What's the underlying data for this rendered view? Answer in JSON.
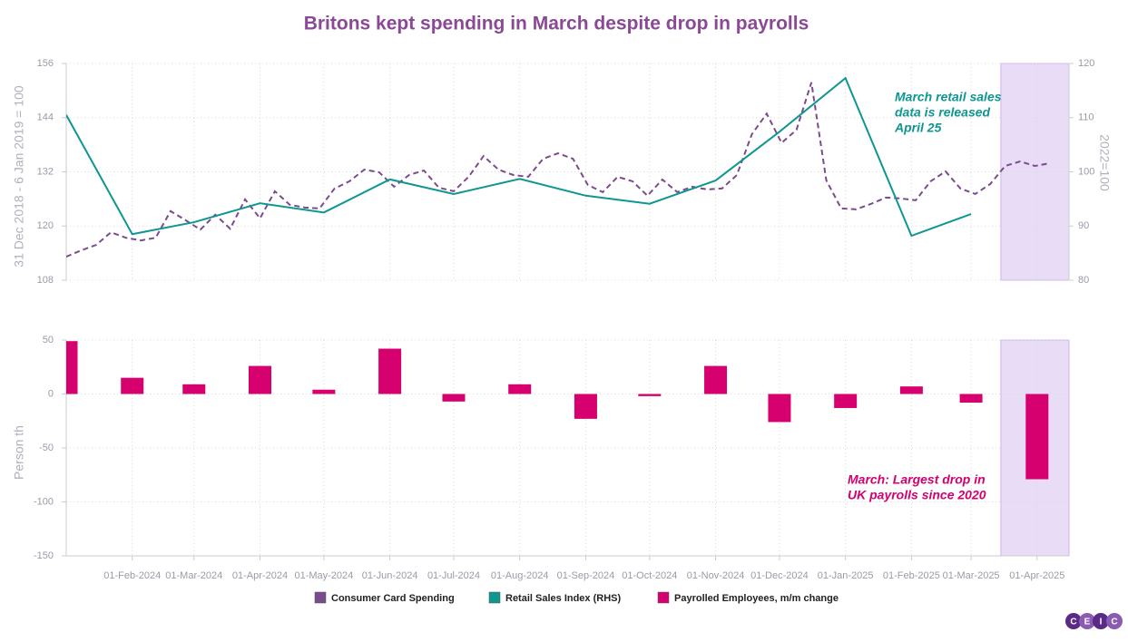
{
  "chart_data": [
    {
      "type": "line",
      "title": "Britons kept spending in March despite drop in payrolls",
      "xlim": [
        "2024-01-01",
        "2025-04-16"
      ],
      "ylim": [
        108,
        156
      ],
      "yticks": [
        108,
        120,
        132,
        144,
        156
      ],
      "y2lim": [
        80,
        120
      ],
      "y2ticks": [
        80,
        90,
        100,
        110,
        120
      ],
      "ylabel": "31 Dec 2018 - 6 Jan 2019 = 100",
      "y2label": "2022=100",
      "grid": true,
      "highlight": [
        "2025-03-15",
        "2025-04-16"
      ],
      "annotation": {
        "lines": [
          "March retail sales",
          "data is released",
          "April 25"
        ],
        "color": "#0e9690"
      },
      "series": [
        {
          "name": "Consumer Card Spending",
          "color": "#7c4a8e",
          "dash": true,
          "x": [
            "2024-01-01",
            "2024-01-08",
            "2024-01-15",
            "2024-01-22",
            "2024-01-29",
            "2024-02-05",
            "2024-02-12",
            "2024-02-19",
            "2024-02-26",
            "2024-03-04",
            "2024-03-11",
            "2024-03-18",
            "2024-03-25",
            "2024-04-01",
            "2024-04-08",
            "2024-04-15",
            "2024-04-22",
            "2024-04-29",
            "2024-05-06",
            "2024-05-13",
            "2024-05-20",
            "2024-05-27",
            "2024-06-03",
            "2024-06-10",
            "2024-06-17",
            "2024-06-24",
            "2024-07-01",
            "2024-07-08",
            "2024-07-15",
            "2024-07-22",
            "2024-07-29",
            "2024-08-05",
            "2024-08-12",
            "2024-08-19",
            "2024-08-26",
            "2024-09-02",
            "2024-09-09",
            "2024-09-16",
            "2024-09-23",
            "2024-09-30",
            "2024-10-07",
            "2024-10-14",
            "2024-10-21",
            "2024-10-28",
            "2024-11-04",
            "2024-11-11",
            "2024-11-18",
            "2024-11-25",
            "2024-12-02",
            "2024-12-09",
            "2024-12-16",
            "2024-12-23",
            "2024-12-30",
            "2025-01-06",
            "2025-01-13",
            "2025-01-20",
            "2025-01-27",
            "2025-02-03",
            "2025-02-10",
            "2025-02-17",
            "2025-02-24",
            "2025-03-03",
            "2025-03-10",
            "2025-03-17",
            "2025-03-24",
            "2025-03-31",
            "2025-04-07"
          ],
          "values": [
            113.2,
            114.6,
            115.8,
            118.6,
            117.4,
            116.8,
            117.4,
            123.3,
            121.3,
            119.2,
            122.5,
            119.4,
            125.9,
            121.7,
            127.7,
            124.7,
            124.1,
            123.9,
            128.3,
            129.9,
            132.5,
            131.9,
            128.7,
            131.3,
            132.3,
            128.5,
            127.7,
            130.9,
            135.5,
            132.5,
            131.3,
            130.9,
            134.9,
            136.1,
            134.9,
            129.1,
            127.5,
            130.9,
            129.9,
            126.7,
            130.3,
            127.5,
            128.7,
            128.1,
            128.3,
            131.3,
            140.3,
            144.9,
            138.4,
            141.3,
            151.8,
            130.1,
            123.9,
            123.7,
            124.9,
            126.3,
            126.1,
            125.7,
            129.9,
            132.1,
            128.3,
            127.1,
            129.3,
            133.3,
            134.3,
            133.3,
            133.9
          ]
        },
        {
          "name": "Retail Sales Index (RHS)",
          "color": "#0e9690",
          "axis": "y2",
          "x": [
            "2024-01-01",
            "2024-02-01",
            "2024-03-01",
            "2024-04-01",
            "2024-05-01",
            "2024-06-01",
            "2024-07-01",
            "2024-08-01",
            "2024-09-01",
            "2024-10-01",
            "2024-11-01",
            "2024-12-01",
            "2025-01-01",
            "2025-02-01",
            "2025-03-01"
          ],
          "values": [
            110.5,
            88.5,
            90.7,
            94.2,
            92.5,
            98.6,
            95.9,
            98.7,
            95.6,
            94.1,
            98.4,
            107.4,
            117.3,
            88.2,
            92.2
          ]
        }
      ]
    },
    {
      "type": "bar",
      "xlim": [
        "2024-01-01",
        "2025-04-16"
      ],
      "ylim": [
        -150,
        50
      ],
      "yticks": [
        -150,
        -100,
        -50,
        0,
        50
      ],
      "ylabel": "Person th",
      "grid": true,
      "highlight": [
        "2025-03-15",
        "2025-04-16"
      ],
      "xticks": [
        {
          "value": "2024-02-01",
          "label": "01-Feb-2024"
        },
        {
          "value": "2024-03-01",
          "label": "01-Mar-2024"
        },
        {
          "value": "2024-04-01",
          "label": "01-Apr-2024"
        },
        {
          "value": "2024-05-01",
          "label": "01-May-2024"
        },
        {
          "value": "2024-06-01",
          "label": "01-Jun-2024"
        },
        {
          "value": "2024-07-01",
          "label": "01-Jul-2024"
        },
        {
          "value": "2024-08-01",
          "label": "01-Aug-2024"
        },
        {
          "value": "2024-09-01",
          "label": "01-Sep-2024"
        },
        {
          "value": "2024-10-01",
          "label": "01-Oct-2024"
        },
        {
          "value": "2024-11-01",
          "label": "01-Nov-2024"
        },
        {
          "value": "2024-12-01",
          "label": "01-Dec-2024"
        },
        {
          "value": "2025-01-01",
          "label": "01-Jan-2025"
        },
        {
          "value": "2025-02-01",
          "label": "01-Feb-2025"
        },
        {
          "value": "2025-03-01",
          "label": "01-Mar-2025"
        },
        {
          "value": "2025-04-01",
          "label": "01-Apr-2025"
        }
      ],
      "annotation": {
        "lines": [
          "March: Largest drop in",
          "UK payrolls since 2020"
        ],
        "color": "#d4006e"
      },
      "series": [
        {
          "name": "Payrolled Employees, m/m change",
          "color": "#d6006f",
          "x": [
            "2024-01-01",
            "2024-02-01",
            "2024-03-01",
            "2024-04-01",
            "2024-05-01",
            "2024-06-01",
            "2024-07-01",
            "2024-08-01",
            "2024-09-01",
            "2024-10-01",
            "2024-11-01",
            "2024-12-01",
            "2025-01-01",
            "2025-02-01",
            "2025-03-01",
            "2025-04-01"
          ],
          "values": [
            49,
            15,
            9,
            26,
            4,
            42,
            -7,
            9,
            -23,
            -2,
            26,
            -26,
            -13,
            7,
            -8,
            -79
          ]
        }
      ]
    }
  ],
  "logo": [
    "C",
    "E",
    "I",
    "C"
  ]
}
